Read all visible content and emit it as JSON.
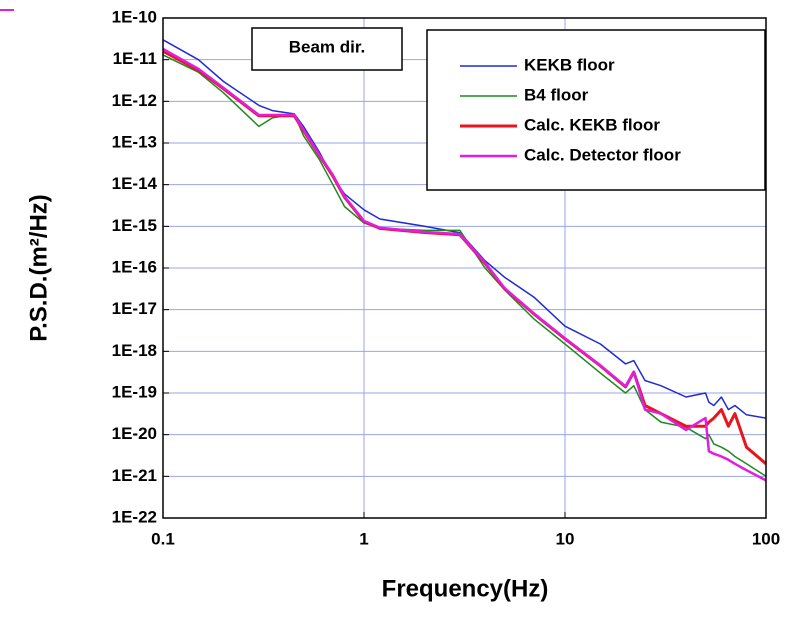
{
  "chart_data": {
    "type": "line",
    "x_label": "Frequency(Hz)",
    "y_label": "P.S.D.(m²/Hz)",
    "annotation": "Beam dir.",
    "xscale": "log",
    "yscale": "log",
    "grid": true,
    "grid_color": "#9aa6e8",
    "legend": "upper right",
    "xlim": [
      0.1,
      100
    ],
    "xticks": [
      0.1,
      1,
      10,
      100
    ],
    "ylim": [
      1e-22,
      1e-10
    ],
    "yticks": [
      {
        "value": 1e-22,
        "label": "1E-22"
      },
      {
        "value": 1e-21,
        "label": "1E-21"
      },
      {
        "value": 1e-20,
        "label": "1E-20"
      },
      {
        "value": 1e-19,
        "label": "1E-19"
      },
      {
        "value": 1e-18,
        "label": "1E-18"
      },
      {
        "value": 1e-17,
        "label": "1E-17"
      },
      {
        "value": 1e-16,
        "label": "1E-16"
      },
      {
        "value": 1e-15,
        "label": "1E-15"
      },
      {
        "value": 1e-14,
        "label": "1E-14"
      },
      {
        "value": 1e-13,
        "label": "1E-13"
      },
      {
        "value": 1e-12,
        "label": "1E-12"
      },
      {
        "value": 1e-11,
        "label": "1E-11"
      },
      {
        "value": 1e-10,
        "label": "1E-10"
      }
    ],
    "x": [
      0.1,
      0.15,
      0.2,
      0.3,
      0.35,
      0.45,
      0.5,
      0.6,
      0.7,
      0.8,
      1,
      1.2,
      2,
      3,
      4,
      5,
      7,
      10,
      15,
      20,
      22,
      25,
      30,
      40,
      50,
      52,
      55,
      60,
      65,
      70,
      80,
      100
    ],
    "series": [
      {
        "name": "KEKB floor",
        "color": "#1f2bd6",
        "width": 1.5,
        "values": [
          3e-11,
          1e-11,
          3e-12,
          8e-13,
          6e-13,
          5e-13,
          2.5e-13,
          6e-14,
          1.5e-14,
          6e-15,
          2.5e-15,
          1.5e-15,
          1e-15,
          7e-16,
          1.5e-16,
          6e-17,
          2e-17,
          4e-18,
          1.5e-18,
          5e-19,
          6e-19,
          2e-19,
          1.5e-19,
          8e-20,
          1e-19,
          6e-20,
          5e-20,
          8e-20,
          4e-20,
          5e-20,
          3e-20,
          2.5e-20
        ]
      },
      {
        "name": "B4 floor",
        "color": "#1e8a1e",
        "width": 1.5,
        "values": [
          1.3e-11,
          5e-12,
          1.6e-12,
          2.5e-13,
          4e-13,
          5e-13,
          1.5e-13,
          4e-14,
          1e-14,
          3e-15,
          1.2e-15,
          9e-16,
          8e-16,
          8e-16,
          1e-16,
          3e-17,
          6e-18,
          1.5e-18,
          3e-19,
          1e-19,
          1.5e-19,
          4e-20,
          2e-20,
          1.5e-20,
          8e-21,
          1e-20,
          6e-21,
          5e-21,
          4e-21,
          3e-21,
          2e-21,
          1e-21
        ]
      },
      {
        "name": "Calc. KEKB floor",
        "color": "#e8141e",
        "width": 3,
        "values": [
          1.6e-11,
          5.6e-12,
          2e-12,
          4.5e-13,
          4.5e-13,
          4.5e-13,
          2e-13,
          5e-14,
          1.6e-14,
          5e-15,
          1.3e-15,
          8.9e-16,
          7.1e-16,
          6.3e-16,
          1.3e-16,
          3.2e-17,
          7.9e-18,
          2e-18,
          4.5e-19,
          1.4e-19,
          3.2e-19,
          5e-20,
          3.2e-20,
          1.6e-20,
          1.6e-20,
          2e-20,
          2.5e-20,
          4e-20,
          1.6e-20,
          3.2e-20,
          5e-21,
          2e-21
        ]
      },
      {
        "name": "Calc. Detector floor",
        "color": "#e01ee0",
        "width": 2.5,
        "values": [
          1.8e-11,
          6e-12,
          2.1e-12,
          4.7e-13,
          4.7e-13,
          4.7e-13,
          2.1e-13,
          5.2e-14,
          1.7e-14,
          5.2e-15,
          1.35e-15,
          9.2e-16,
          7.3e-16,
          6.5e-16,
          1.35e-16,
          3.3e-17,
          8.1e-18,
          2.05e-18,
          4.6e-19,
          1.45e-19,
          3.2e-19,
          4e-20,
          3.2e-20,
          1.3e-20,
          2.5e-20,
          4e-21,
          3.5e-21,
          3e-21,
          2.5e-21,
          2e-21,
          1.4e-21,
          8e-22
        ]
      }
    ]
  }
}
